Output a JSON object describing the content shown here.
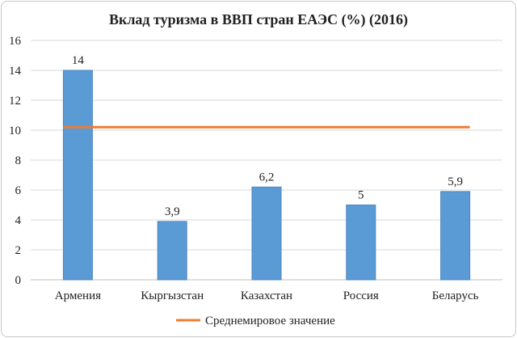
{
  "chart_data": {
    "type": "bar",
    "title": "Вклад туризма в ВВП стран ЕАЭС (%) (2016)",
    "xlabel": "",
    "ylabel": "",
    "categories": [
      "Армения",
      "Кыргызстан",
      "Казахстан",
      "Россия",
      "Беларусь"
    ],
    "values": [
      14,
      3.9,
      6.2,
      5,
      5.9
    ],
    "data_labels": [
      "14",
      "3,9",
      "6,2",
      "5",
      "5,9"
    ],
    "ylim": [
      0,
      16
    ],
    "yticks": [
      0,
      2,
      4,
      6,
      8,
      10,
      12,
      14,
      16
    ],
    "grid": true,
    "bar_color": "#5b9bd5",
    "reference_line": {
      "name": "Среднемировое значение",
      "value": 10.2,
      "color": "#ed7d31"
    },
    "legend": "bottom"
  }
}
